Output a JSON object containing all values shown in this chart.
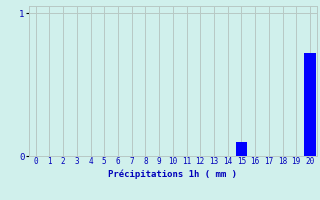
{
  "categories": [
    0,
    1,
    2,
    3,
    4,
    5,
    6,
    7,
    8,
    9,
    10,
    11,
    12,
    13,
    14,
    15,
    16,
    17,
    18,
    19,
    20
  ],
  "values": [
    0,
    0,
    0,
    0,
    0,
    0,
    0,
    0,
    0,
    0,
    0,
    0,
    0,
    0,
    0,
    0.1,
    0,
    0,
    0,
    0,
    0.72
  ],
  "bar_color": "#0000FF",
  "background_color": "#D0F0EC",
  "grid_color": "#B8C8C4",
  "xlabel": "Précipitations 1h ( mm )",
  "xlabel_color": "#0000BB",
  "tick_color": "#0000BB",
  "yticks": [
    0,
    1
  ],
  "ylim": [
    0,
    1.05
  ],
  "xlim": [
    -0.5,
    20.5
  ],
  "bar_width": 0.85,
  "tick_fontsize": 5.5,
  "xlabel_fontsize": 6.5
}
